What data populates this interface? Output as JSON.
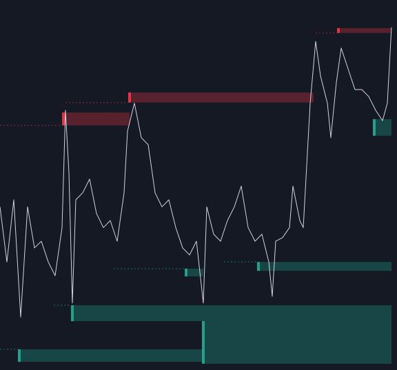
{
  "chart_data": {
    "type": "line",
    "x": [
      0,
      10,
      20,
      30,
      40,
      50,
      60,
      70,
      80,
      90,
      95,
      100,
      105,
      110,
      120,
      130,
      140,
      150,
      160,
      170,
      180,
      185,
      195,
      205,
      215,
      225,
      235,
      245,
      255,
      265,
      275,
      285,
      295,
      300,
      310,
      320,
      330,
      340,
      350,
      360,
      370,
      380,
      390,
      395,
      400,
      410,
      420,
      425,
      435,
      440,
      445,
      450,
      458,
      465,
      475,
      480,
      488,
      495,
      505,
      515,
      525,
      535,
      545,
      555,
      562,
      568
    ],
    "values": [
      44.1,
      29.2,
      46.0,
      14.3,
      44.1,
      33.0,
      34.8,
      29.2,
      25.5,
      38.5,
      70.2,
      53.4,
      18.1,
      46.0,
      47.9,
      51.6,
      42.3,
      38.5,
      40.4,
      34.8,
      47.9,
      64.6,
      72.1,
      62.8,
      60.9,
      47.9,
      44.1,
      46.0,
      38.5,
      33.0,
      31.1,
      34.8,
      18.1,
      44.1,
      36.7,
      34.8,
      40.4,
      44.1,
      49.7,
      38.5,
      34.8,
      36.7,
      29.2,
      19.9,
      34.8,
      35.8,
      38.5,
      49.7,
      40.4,
      38.5,
      55.3,
      72.1,
      88.8,
      79.5,
      72.1,
      62.8,
      77.7,
      87.0,
      81.4,
      75.8,
      75.8,
      73.9,
      70.2,
      67.4,
      72.1,
      92.6
    ],
    "color": "#d1d4dc",
    "xlim": [
      0,
      576
    ],
    "ylim": [
      0,
      100
    ],
    "zones": [
      {
        "x0": 90,
        "x1": 188,
        "top": 69.6,
        "bottom": 66.1,
        "color": "#f23645"
      },
      {
        "x0": 186,
        "x1": 455,
        "top": 75.0,
        "bottom": 72.3,
        "color": "#f23645"
      },
      {
        "x0": 489,
        "x1": 568,
        "top": 92.4,
        "bottom": 91.1,
        "color": "#f23645"
      },
      {
        "x0": 541,
        "x1": 568,
        "top": 67.8,
        "bottom": 63.3,
        "color": "#22ab94"
      },
      {
        "x0": 268,
        "x1": 295,
        "top": 27.4,
        "bottom": 25.3,
        "color": "#22ab94"
      },
      {
        "x0": 373,
        "x1": 568,
        "top": 29.2,
        "bottom": 26.8,
        "color": "#22ab94"
      },
      {
        "x0": 103,
        "x1": 568,
        "top": 17.5,
        "bottom": 13.2,
        "color": "#22ab94"
      },
      {
        "x0": 293,
        "x1": 568,
        "top": 13.2,
        "bottom": 1.7,
        "color": "#22ab94"
      },
      {
        "x0": 26,
        "x1": 295,
        "top": 5.6,
        "bottom": 2.2,
        "color": "#22ab94"
      }
    ]
  }
}
